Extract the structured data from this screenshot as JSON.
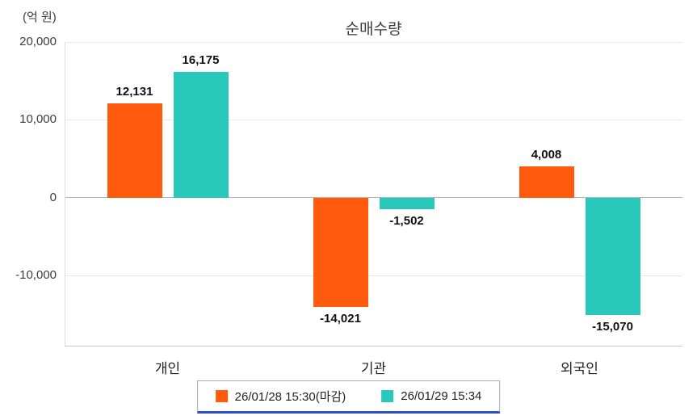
{
  "title": "순매수량",
  "unit_label": "(억 원)",
  "colors": {
    "series1": "#FF5A0E",
    "series2": "#2AC8BA",
    "legend_underline": "#2B50C8",
    "zero_line": "#B4B4B4"
  },
  "chart_data": {
    "type": "bar",
    "title": "순매수량",
    "ylabel": "(억 원)",
    "xlabel": "",
    "categories": [
      "개인",
      "기관",
      "외국인"
    ],
    "series": [
      {
        "name": "26/01/28 15:30(마감)",
        "color": "#FF5A0E",
        "values": [
          12131,
          -14021,
          4008
        ]
      },
      {
        "name": "26/01/29 15:34",
        "color": "#2AC8BA",
        "values": [
          16175,
          -1502,
          -15070
        ]
      }
    ],
    "yticks": [
      20000,
      10000,
      0,
      -10000
    ],
    "ylim": [
      -19000,
      20000
    ],
    "grid": true,
    "value_labels": true,
    "legend_position": "bottom"
  }
}
